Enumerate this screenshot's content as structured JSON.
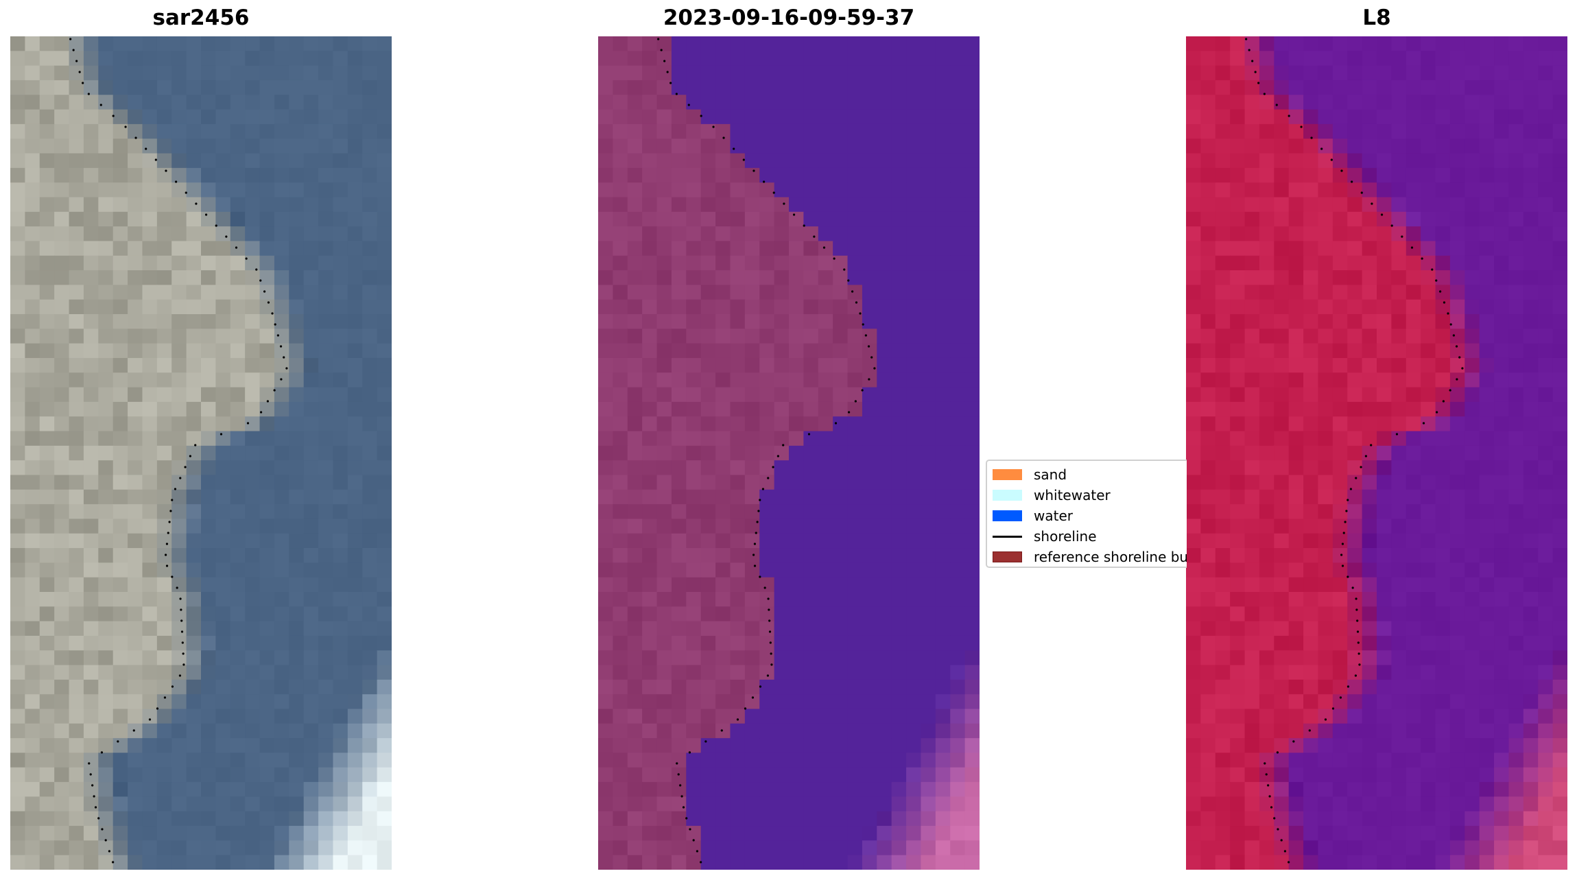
{
  "panels": [
    {
      "title": "sar2456",
      "land_color": "#a9a89c",
      "water_color": "#4b6585",
      "surf_color": "#e8f2f4"
    },
    {
      "title": "2023-09-16-09-59-37",
      "land_color": "#8f3b70",
      "water_color": "#54239a",
      "surf_color": "#c96aa8"
    },
    {
      "title": "L8",
      "land_color": "#c41f4f",
      "water_color": "#6a1a9a",
      "surf_color": "#d04a7a"
    }
  ],
  "legend": {
    "items": [
      {
        "label": "sand",
        "type": "patch",
        "color": "#ff8c3f"
      },
      {
        "label": "whitewater",
        "type": "patch",
        "color": "#cafcff"
      },
      {
        "label": "water",
        "type": "patch",
        "color": "#005aff"
      },
      {
        "label": "shoreline",
        "type": "line",
        "color": "#000000"
      },
      {
        "label": "reference shoreline buffer",
        "type": "patch",
        "color": "#9b3030"
      }
    ]
  }
}
